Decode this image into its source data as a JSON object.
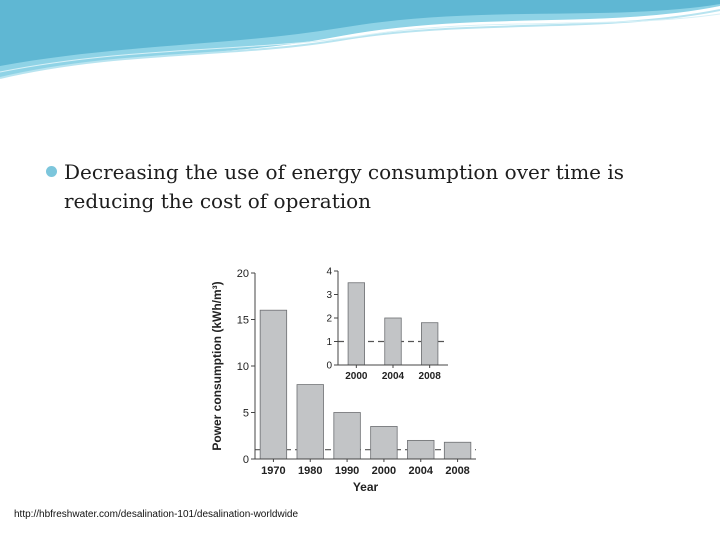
{
  "slide": {
    "bullet_text": "Decreasing the use of energy consumption over time is reducing the cost of operation",
    "source_url": "http://hbfreshwater.com/desalination-101/desalination-worldwide",
    "colors": {
      "accent": "#7cc6dc",
      "bar": "#c2c4c6",
      "bar_edge": "#6d6f72"
    }
  },
  "chart_data": [
    {
      "type": "bar",
      "categories": [
        "1970",
        "1980",
        "1990",
        "2000",
        "2004",
        "2008"
      ],
      "values": [
        16,
        8,
        5,
        3.5,
        2,
        1.8
      ],
      "xlabel": "Year",
      "ylabel": "Power consumption (kWh/m³)",
      "ylim": [
        0,
        20
      ],
      "yticks": [
        "0",
        "5",
        "10",
        "15",
        "20"
      ],
      "reference_line": 1,
      "grid": false
    },
    {
      "type": "bar",
      "categories": [
        "2000",
        "2004",
        "2008"
      ],
      "values": [
        3.5,
        2,
        1.8
      ],
      "ylim": [
        0,
        4
      ],
      "yticks": [
        "0",
        "1",
        "2",
        "3",
        "4"
      ],
      "reference_line": 1,
      "grid": false
    }
  ]
}
